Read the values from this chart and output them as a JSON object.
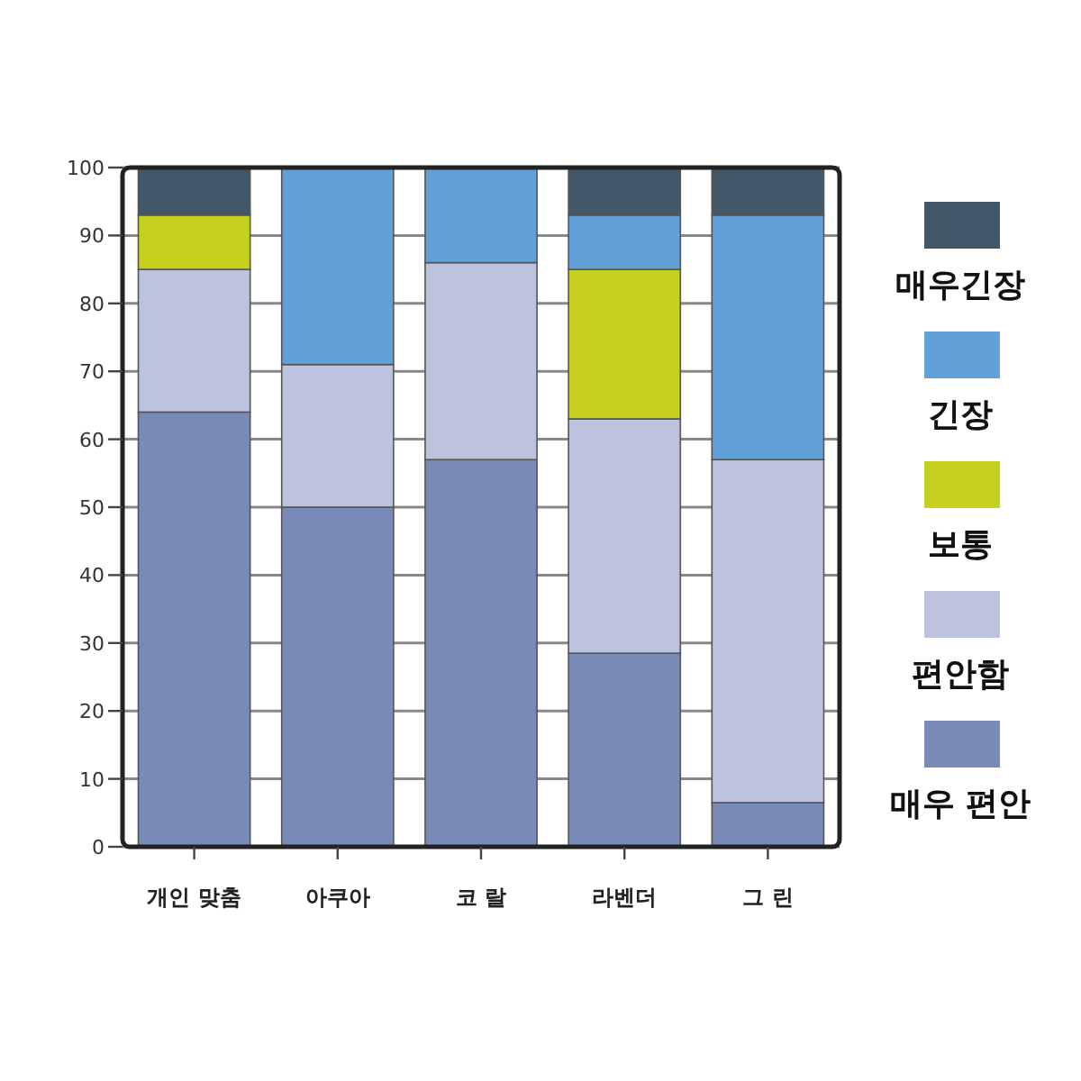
{
  "chart_data": {
    "type": "bar",
    "stacked": true,
    "categories": [
      "개인 맞춤",
      "아쿠아",
      "코 랄",
      "라벤더",
      "그 린"
    ],
    "series": [
      {
        "name": "매우 편안",
        "color": "#7a8ab8",
        "values": [
          64,
          50,
          57,
          28.5,
          6.5
        ]
      },
      {
        "name": "편안함",
        "color": "#bdc2de",
        "values": [
          21,
          21,
          29,
          34.5,
          50.5
        ]
      },
      {
        "name": "보통",
        "color": "#c5d11e",
        "values": [
          8,
          0,
          0,
          22,
          0
        ]
      },
      {
        "name": "긴장",
        "color": "#62a0d8",
        "values": [
          0,
          29,
          14,
          8,
          36
        ]
      },
      {
        "name": "매우긴장",
        "color": "#425868",
        "values": [
          7,
          0,
          0,
          7,
          7
        ]
      }
    ],
    "ylim": [
      0,
      100
    ],
    "yticks": [
      0,
      10,
      20,
      30,
      40,
      50,
      60,
      70,
      80,
      90,
      100
    ],
    "grid": "y",
    "legend": "right"
  }
}
